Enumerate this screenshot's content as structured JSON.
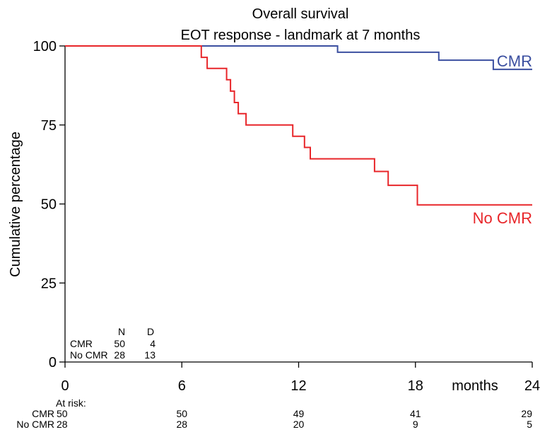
{
  "chart_data": {
    "type": "line",
    "title": "Overall survival",
    "subtitle": "EOT response - landmark at 7 months",
    "xlabel": "months",
    "ylabel": "Cumulative percentage",
    "xlim": [
      0,
      24
    ],
    "ylim": [
      0,
      100
    ],
    "x_ticks": [
      "0",
      "6",
      "12",
      "18",
      "24"
    ],
    "y_ticks": [
      "0",
      "25",
      "50",
      "75",
      "100"
    ],
    "grid": false,
    "series": [
      {
        "name": "CMR",
        "color": "#3b4fa0",
        "x": [
          0,
          14.0,
          14.0,
          19.2,
          19.2,
          22.0,
          22.0,
          24.0
        ],
        "y": [
          100,
          100,
          98,
          98,
          95.5,
          95.5,
          92.6,
          92.6
        ]
      },
      {
        "name": "No CMR",
        "color": "#e8262a",
        "x": [
          0,
          7.0,
          7.0,
          7.3,
          7.3,
          8.3,
          8.3,
          8.5,
          8.5,
          8.7,
          8.7,
          8.9,
          8.9,
          9.3,
          9.3,
          11.7,
          11.7,
          12.3,
          12.3,
          12.6,
          12.6,
          15.9,
          15.9,
          16.6,
          16.6,
          18.1,
          18.1,
          24.0
        ],
        "y": [
          100,
          100,
          96.4,
          96.4,
          92.9,
          92.9,
          89.3,
          89.3,
          85.7,
          85.7,
          82.1,
          82.1,
          78.6,
          78.6,
          75.0,
          75.0,
          71.4,
          71.4,
          67.9,
          67.9,
          64.3,
          64.3,
          60.3,
          60.3,
          55.9,
          55.9,
          49.7,
          49.7
        ]
      }
    ],
    "summary_table": {
      "headers": [
        "N",
        "D"
      ],
      "rows": [
        {
          "label": "CMR",
          "n": "50",
          "d": "4"
        },
        {
          "label": "No CMR",
          "n": "28",
          "d": "13"
        }
      ]
    },
    "at_risk": {
      "title": "At risk:",
      "rows": [
        {
          "label": "CMR",
          "values": [
            "50",
            "50",
            "49",
            "41",
            "29"
          ]
        },
        {
          "label": "No CMR",
          "values": [
            "28",
            "28",
            "20",
            "9",
            "5"
          ]
        }
      ]
    }
  }
}
